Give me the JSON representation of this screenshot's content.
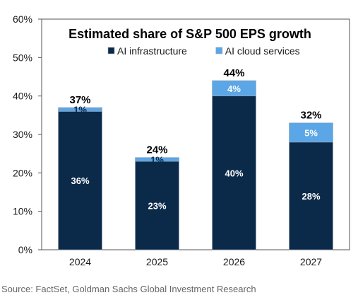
{
  "chart_data": {
    "type": "bar",
    "stacked": true,
    "title": "Estimated share of S&P 500 EPS growth",
    "categories": [
      "2024",
      "2025",
      "2026",
      "2027"
    ],
    "series": [
      {
        "name": "AI infrastructure",
        "values": [
          36,
          23,
          40,
          28
        ],
        "labels": [
          "36%",
          "23%",
          "40%",
          "28%"
        ],
        "color": "#0b2a4a"
      },
      {
        "name": "AI cloud services",
        "values": [
          1,
          1,
          4,
          5
        ],
        "labels": [
          "1%",
          "1%",
          "4%",
          "5%"
        ],
        "color": "#5aa6e6"
      }
    ],
    "totals": [
      "37%",
      "24%",
      "44%",
      "32%"
    ],
    "y_ticks": [
      "0%",
      "10%",
      "20%",
      "30%",
      "40%",
      "50%",
      "60%"
    ],
    "ylim": [
      0,
      60
    ],
    "legend_position": "top",
    "grid": false
  },
  "source_note": "Source: FactSet, Goldman Sachs Global Investment Research"
}
